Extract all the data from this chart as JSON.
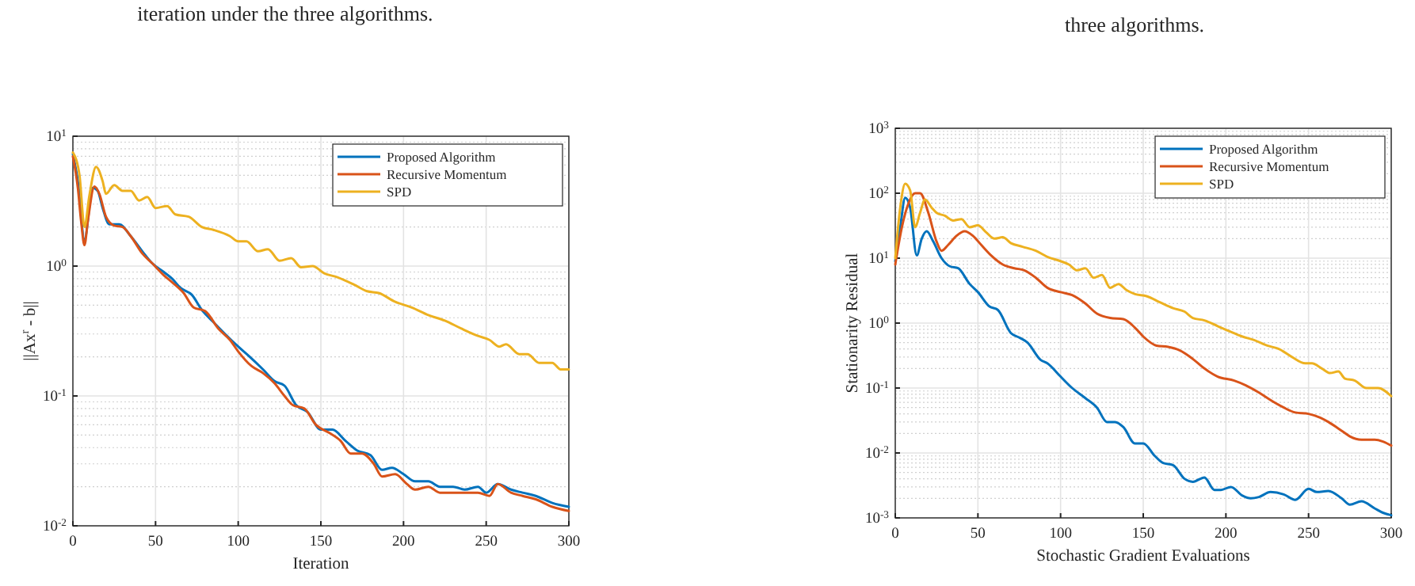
{
  "chart_data": [
    {
      "type": "line",
      "xlabel": "Iteration",
      "ylabel": "||Ax$^{r}$ - b||",
      "annotations": [
        "iteration under the three algorithms."
      ],
      "log": "y",
      "grid": true,
      "legend": "top right",
      "xlim": [
        0,
        300
      ],
      "xticks": [
        0,
        50,
        100,
        150,
        200,
        250,
        300
      ],
      "ylim": [
        0.01,
        10
      ],
      "yticks": [
        {
          "value": 0.01,
          "label": "10$^{-2}$"
        },
        {
          "value": 0.1,
          "label": "10$^{-1}$"
        },
        {
          "value": 1,
          "label": "10$^{0}$"
        },
        {
          "value": 10,
          "label": "10$^{1}$"
        }
      ],
      "series": [
        {
          "name": "Proposed Algorithm",
          "color": "#0072bd",
          "x": [
            0,
            3,
            7,
            12,
            15,
            18,
            22,
            28,
            35,
            42,
            48,
            55,
            60,
            65,
            72,
            78,
            85,
            92,
            100,
            107,
            115,
            122,
            128,
            135,
            142,
            150,
            157,
            165,
            172,
            180,
            187,
            193,
            200,
            207,
            215,
            222,
            230,
            237,
            245,
            250,
            257,
            265,
            272,
            280,
            290,
            300
          ],
          "values": [
            7.3,
            4.5,
            1.6,
            4.0,
            3.8,
            2.8,
            2.1,
            2.1,
            1.7,
            1.3,
            1.05,
            0.9,
            0.8,
            0.68,
            0.6,
            0.46,
            0.37,
            0.3,
            0.24,
            0.2,
            0.16,
            0.13,
            0.12,
            0.085,
            0.075,
            0.055,
            0.055,
            0.045,
            0.038,
            0.035,
            0.027,
            0.028,
            0.025,
            0.022,
            0.022,
            0.02,
            0.02,
            0.019,
            0.02,
            0.018,
            0.021,
            0.019,
            0.018,
            0.017,
            0.015,
            0.014
          ]
        },
        {
          "name": "Recursive Momentum",
          "color": "#d95319",
          "x": [
            0,
            3,
            5,
            7,
            9,
            13,
            16,
            20,
            25,
            30,
            35,
            42,
            48,
            55,
            60,
            67,
            73,
            80,
            88,
            95,
            100,
            108,
            115,
            122,
            128,
            133,
            140,
            147,
            155,
            162,
            168,
            175,
            182,
            187,
            195,
            202,
            207,
            215,
            222,
            230,
            237,
            245,
            252,
            257,
            265,
            272,
            280,
            290,
            300
          ],
          "values": [
            7.0,
            4.0,
            2.2,
            1.45,
            2.2,
            4.1,
            3.6,
            2.4,
            2.05,
            2.0,
            1.7,
            1.25,
            1.05,
            0.85,
            0.75,
            0.62,
            0.48,
            0.45,
            0.33,
            0.27,
            0.22,
            0.17,
            0.15,
            0.125,
            0.1,
            0.085,
            0.08,
            0.06,
            0.052,
            0.045,
            0.036,
            0.036,
            0.03,
            0.024,
            0.025,
            0.021,
            0.019,
            0.02,
            0.018,
            0.018,
            0.018,
            0.018,
            0.017,
            0.021,
            0.018,
            0.017,
            0.016,
            0.014,
            0.013
          ]
        },
        {
          "name": "SPD",
          "color": "#edb120",
          "x": [
            0,
            4,
            7,
            10,
            14,
            18,
            20,
            25,
            30,
            35,
            40,
            45,
            50,
            57,
            62,
            70,
            78,
            85,
            95,
            100,
            105,
            112,
            118,
            125,
            132,
            138,
            145,
            152,
            160,
            170,
            178,
            185,
            195,
            205,
            215,
            225,
            235,
            245,
            252,
            258,
            262,
            270,
            275,
            282,
            290,
            295,
            300
          ],
          "values": [
            7.5,
            5,
            2.0,
            3.5,
            5.8,
            4.5,
            3.6,
            4.2,
            3.8,
            3.8,
            3.2,
            3.4,
            2.8,
            2.9,
            2.5,
            2.4,
            2.0,
            1.9,
            1.7,
            1.55,
            1.55,
            1.3,
            1.35,
            1.1,
            1.15,
            0.98,
            1.0,
            0.88,
            0.82,
            0.72,
            0.64,
            0.62,
            0.53,
            0.48,
            0.42,
            0.38,
            0.33,
            0.29,
            0.27,
            0.24,
            0.25,
            0.21,
            0.21,
            0.18,
            0.18,
            0.16,
            0.16
          ]
        }
      ]
    },
    {
      "type": "line",
      "xlabel": "Stochastic Gradient Evaluations",
      "ylabel": "Stationarity Residual",
      "annotations": [
        "three algorithms."
      ],
      "log": "y",
      "grid": true,
      "legend": "top right",
      "xlim": [
        0,
        300
      ],
      "xticks": [
        0,
        50,
        100,
        150,
        200,
        250,
        300
      ],
      "ylim": [
        0.001,
        1000
      ],
      "yticks": [
        {
          "value": 0.001,
          "label": "10$^{-3}$"
        },
        {
          "value": 0.01,
          "label": "10$^{-2}$"
        },
        {
          "value": 0.1,
          "label": "10$^{-1}$"
        },
        {
          "value": 1,
          "label": "10$^{0}$"
        },
        {
          "value": 10,
          "label": "10$^{1}$"
        },
        {
          "value": 100,
          "label": "10$^{2}$"
        },
        {
          "value": 1000,
          "label": "10$^{3}$"
        }
      ],
      "series": [
        {
          "name": "Proposed Algorithm",
          "color": "#0072bd",
          "x": [
            0,
            3,
            6,
            9,
            13,
            16,
            19,
            23,
            28,
            33,
            38,
            45,
            50,
            57,
            62,
            70,
            75,
            80,
            88,
            92,
            100,
            107,
            115,
            122,
            128,
            133,
            138,
            145,
            150,
            157,
            162,
            168,
            175,
            180,
            187,
            193,
            197,
            203,
            210,
            215,
            220,
            227,
            235,
            242,
            250,
            255,
            262,
            270,
            275,
            282,
            290,
            295,
            300
          ],
          "values": [
            9,
            30,
            85,
            60,
            11,
            20,
            26,
            18,
            10,
            7.5,
            7,
            4,
            3,
            1.8,
            1.6,
            0.7,
            0.6,
            0.5,
            0.27,
            0.24,
            0.15,
            0.1,
            0.07,
            0.05,
            0.03,
            0.03,
            0.025,
            0.014,
            0.014,
            0.009,
            0.007,
            0.0065,
            0.004,
            0.0036,
            0.0042,
            0.0027,
            0.0027,
            0.003,
            0.0022,
            0.002,
            0.0021,
            0.0025,
            0.0023,
            0.0019,
            0.0028,
            0.0025,
            0.0026,
            0.002,
            0.0016,
            0.0018,
            0.0014,
            0.0012,
            0.0011
          ]
        },
        {
          "name": "Recursive Momentum",
          "color": "#d95319",
          "x": [
            0,
            4,
            8,
            12,
            15,
            20,
            25,
            28,
            32,
            37,
            42,
            47,
            52,
            58,
            65,
            72,
            78,
            85,
            92,
            100,
            107,
            115,
            122,
            130,
            138,
            145,
            150,
            158,
            165,
            172,
            180,
            187,
            195,
            205,
            212,
            220,
            228,
            235,
            242,
            250,
            257,
            262,
            270,
            275,
            282,
            290,
            295,
            300
          ],
          "values": [
            8,
            30,
            70,
            100,
            100,
            50,
            18,
            13,
            16,
            22,
            26,
            22,
            16,
            11,
            8,
            7,
            6.5,
            5,
            3.5,
            3.0,
            2.7,
            2.0,
            1.4,
            1.2,
            1.15,
            0.85,
            0.62,
            0.45,
            0.43,
            0.38,
            0.28,
            0.2,
            0.15,
            0.13,
            0.11,
            0.085,
            0.063,
            0.05,
            0.042,
            0.04,
            0.035,
            0.03,
            0.022,
            0.018,
            0.016,
            0.016,
            0.015,
            0.013
          ]
        },
        {
          "name": "SPD",
          "color": "#edb120",
          "x": [
            0,
            3,
            6,
            9,
            12,
            15,
            18,
            22,
            25,
            30,
            35,
            40,
            45,
            50,
            55,
            60,
            65,
            70,
            77,
            85,
            92,
            100,
            105,
            110,
            115,
            120,
            125,
            130,
            135,
            140,
            145,
            152,
            160,
            168,
            175,
            180,
            187,
            195,
            202,
            210,
            217,
            225,
            232,
            240,
            248,
            252,
            258,
            263,
            268,
            272,
            278,
            285,
            292,
            300
          ],
          "values": [
            10,
            60,
            140,
            110,
            30,
            50,
            80,
            60,
            50,
            45,
            38,
            40,
            30,
            32,
            25,
            20,
            21,
            17,
            15,
            13,
            10.5,
            9,
            8,
            6.5,
            7,
            5,
            5.5,
            3.5,
            4,
            3.2,
            2.8,
            2.6,
            2.1,
            1.7,
            1.5,
            1.2,
            1.1,
            0.9,
            0.75,
            0.62,
            0.55,
            0.45,
            0.4,
            0.3,
            0.24,
            0.24,
            0.2,
            0.17,
            0.18,
            0.14,
            0.13,
            0.1,
            0.1,
            0.075
          ]
        }
      ]
    }
  ]
}
